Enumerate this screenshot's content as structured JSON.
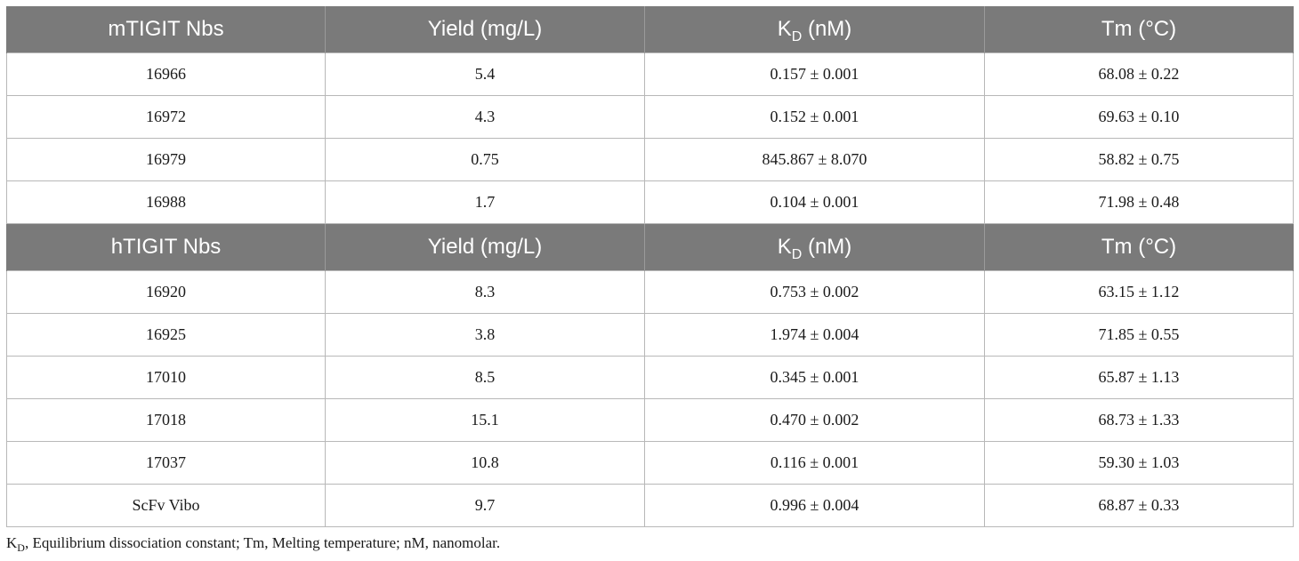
{
  "sections": [
    {
      "header": {
        "group": "mTIGIT Nbs",
        "yield": "Yield (mg/L)",
        "kd_main": "K",
        "kd_sub": "D",
        "kd_unit": " (nM)",
        "tm": "Tm (°C)"
      },
      "rows": [
        {
          "id": "16966",
          "yield": "5.4",
          "kd": "0.157 ± 0.001",
          "tm": "68.08 ± 0.22"
        },
        {
          "id": "16972",
          "yield": "4.3",
          "kd": "0.152 ± 0.001",
          "tm": "69.63 ± 0.10"
        },
        {
          "id": "16979",
          "yield": "0.75",
          "kd": "845.867 ± 8.070",
          "tm": "58.82 ± 0.75"
        },
        {
          "id": "16988",
          "yield": "1.7",
          "kd": "0.104 ± 0.001",
          "tm": "71.98 ± 0.48"
        }
      ]
    },
    {
      "header": {
        "group": "hTIGIT Nbs",
        "yield": "Yield (mg/L)",
        "kd_main": "K",
        "kd_sub": "D",
        "kd_unit": " (nM)",
        "tm": "Tm (°C)"
      },
      "rows": [
        {
          "id": "16920",
          "yield": "8.3",
          "kd": "0.753 ± 0.002",
          "tm": "63.15 ± 1.12"
        },
        {
          "id": "16925",
          "yield": "3.8",
          "kd": "1.974 ± 0.004",
          "tm": "71.85 ± 0.55"
        },
        {
          "id": "17010",
          "yield": "8.5",
          "kd": "0.345 ± 0.001",
          "tm": "65.87 ± 1.13"
        },
        {
          "id": "17018",
          "yield": "15.1",
          "kd": "0.470 ± 0.002",
          "tm": "68.73 ± 1.33"
        },
        {
          "id": "17037",
          "yield": "10.8",
          "kd": "0.116 ± 0.001",
          "tm": "59.30 ± 1.03"
        },
        {
          "id": "ScFv Vibo",
          "yield": "9.7",
          "kd": "0.996 ± 0.004",
          "tm": "68.87 ± 0.33"
        }
      ]
    }
  ],
  "footnote": {
    "kd_main": "K",
    "kd_sub": "D",
    "text": ", Equilibrium dissociation constant; Tm, Melting temperature; nM, nanomolar."
  },
  "colors": {
    "header_bg": "#7a7a7a",
    "header_text": "#ffffff",
    "border": "#b8b8b8"
  }
}
